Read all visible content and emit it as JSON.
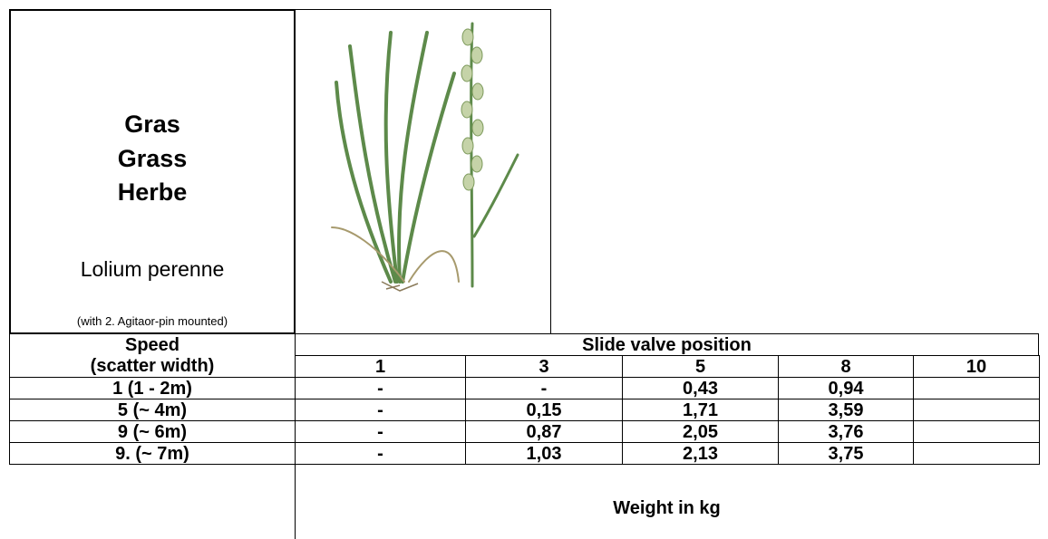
{
  "header": {
    "names": [
      "Gras",
      "Grass",
      "Herbe"
    ],
    "latin": "Lolium perenne",
    "note": "(with 2.  Agitaor-pin mounted)"
  },
  "table": {
    "speed": "Speed",
    "scatter_width": "(scatter width)",
    "slide_valve_position": "Slide valve position",
    "columns": [
      "1",
      "3",
      "5",
      "8",
      "10"
    ],
    "rows": [
      {
        "label": "1 (1 - 2m)",
        "cells": [
          "-",
          "-",
          "0,43",
          "0,94",
          null
        ]
      },
      {
        "label": "5 (~ 4m)",
        "cells": [
          "-",
          "0,15",
          "1,71",
          "3,59",
          null
        ]
      },
      {
        "label": "9 (~ 6m)",
        "cells": [
          "-",
          "0,87",
          "2,05",
          "3,76",
          null
        ]
      },
      {
        "label": "9. (~ 7m)",
        "cells": [
          "-",
          "1,03",
          "2,13",
          "3,75",
          null
        ]
      }
    ],
    "footer": "Weight in kg"
  }
}
